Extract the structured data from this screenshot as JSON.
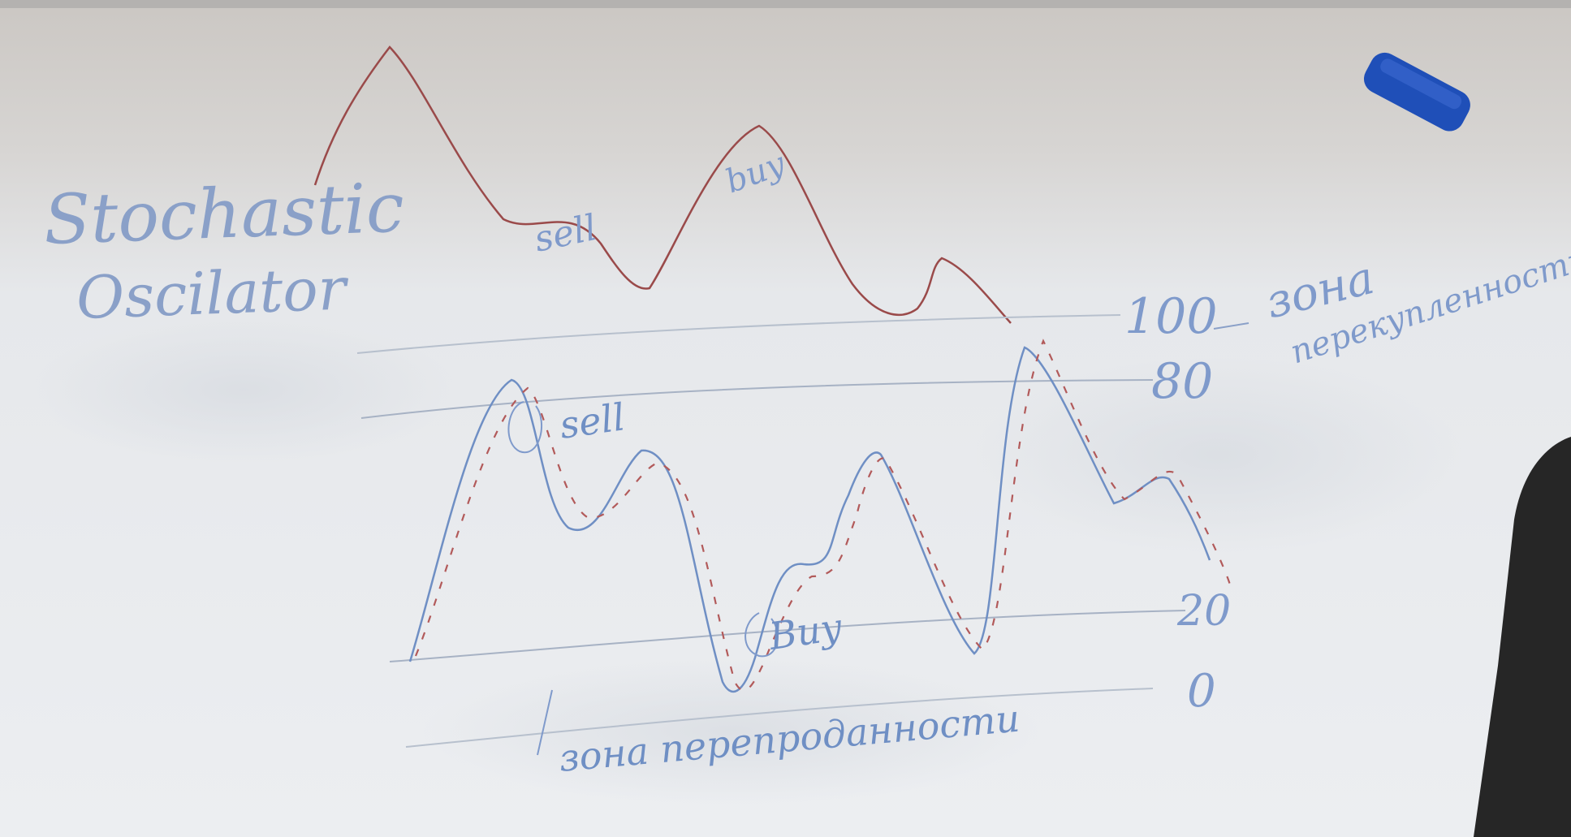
{
  "board": {
    "title_line1": "Stochastic",
    "title_line2": "Oscilator",
    "label_sell_price": "sell",
    "label_buy_price": "buy",
    "label_sell_osc": "sell",
    "label_buy_osc": "Buy",
    "level_100": "100",
    "level_80": "80",
    "level_20": "20",
    "level_0": "0",
    "zone_overbought_line1": "зона",
    "zone_overbought_line2": "перекупленности",
    "zone_oversold": "зона перепроданности"
  },
  "colors": {
    "price_line": "#9a4a4a",
    "oscillator_line": "#6f8fc4",
    "signal_line_dashed": "#b25a5a",
    "marker_text": "#7f9acb",
    "eraser": "#1f4fb8"
  }
}
